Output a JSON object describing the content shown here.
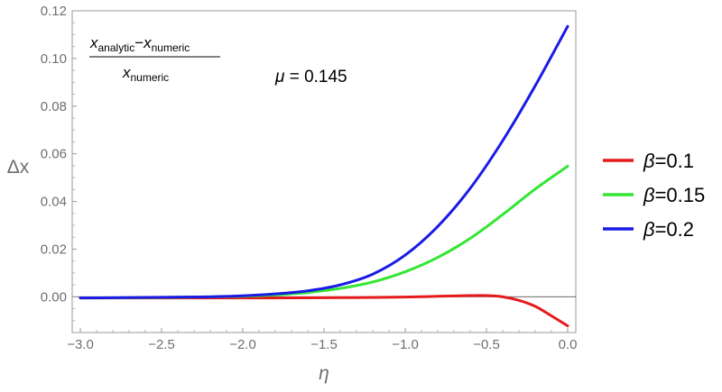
{
  "chart_data": {
    "type": "line",
    "xlabel": "η",
    "ylabel": "Δx",
    "xlim": [
      -3.05,
      0.05
    ],
    "ylim": [
      -0.015,
      0.12
    ],
    "x_ticks": [
      "−3.0",
      "−2.5",
      "−2.0",
      "−1.5",
      "−1.0",
      "−0.5",
      "0.0"
    ],
    "y_ticks": [
      "0.00",
      "0.02",
      "0.04",
      "0.06",
      "0.08",
      "0.10",
      "0.12"
    ],
    "grid": false,
    "legend_position": "right",
    "annotations": {
      "fraction_numerator_left": "x",
      "fraction_numerator_left_sub": "analytic",
      "fraction_minus": "−",
      "fraction_numerator_right": "x",
      "fraction_numerator_right_sub": "numeric",
      "fraction_denominator": "x",
      "fraction_denominator_sub": "numeric",
      "mu_symbol": "μ",
      "mu_text": " = 0.145"
    },
    "series": [
      {
        "name_symbol": "β",
        "name_value": "=0.1",
        "color": "#e41a1c",
        "x": [
          -3.0,
          -2.5,
          -2.0,
          -1.5,
          -1.25,
          -1.0,
          -0.8,
          -0.6,
          -0.5,
          -0.4,
          -0.3,
          -0.2,
          -0.1,
          0.0
        ],
        "y": [
          -0.0005,
          -0.0005,
          -0.0005,
          -0.0004,
          -0.0003,
          -0.0001,
          0.0002,
          0.0005,
          0.0005,
          0.0,
          -0.0015,
          -0.004,
          -0.008,
          -0.0122
        ]
      },
      {
        "name_symbol": "β",
        "name_value": "=0.15",
        "color": "#33e633",
        "x": [
          -3.0,
          -2.5,
          -2.2,
          -2.0,
          -1.8,
          -1.6,
          -1.4,
          -1.2,
          -1.0,
          -0.8,
          -0.6,
          -0.4,
          -0.2,
          0.0
        ],
        "y": [
          -0.0005,
          -0.0003,
          0.0,
          0.0002,
          0.0008,
          0.0018,
          0.0035,
          0.0062,
          0.0105,
          0.0165,
          0.0245,
          0.0345,
          0.0452,
          0.0548
        ]
      },
      {
        "name_symbol": "β",
        "name_value": "=0.2",
        "color": "#1a1ae6",
        "x": [
          -3.0,
          -2.5,
          -2.2,
          -2.0,
          -1.8,
          -1.6,
          -1.4,
          -1.2,
          -1.0,
          -0.8,
          -0.6,
          -0.4,
          -0.2,
          0.0
        ],
        "y": [
          -0.0005,
          -0.0002,
          0.0,
          0.0004,
          0.0012,
          0.0025,
          0.005,
          0.0095,
          0.0175,
          0.0295,
          0.0455,
          0.0655,
          0.0885,
          0.1135
        ]
      }
    ]
  }
}
